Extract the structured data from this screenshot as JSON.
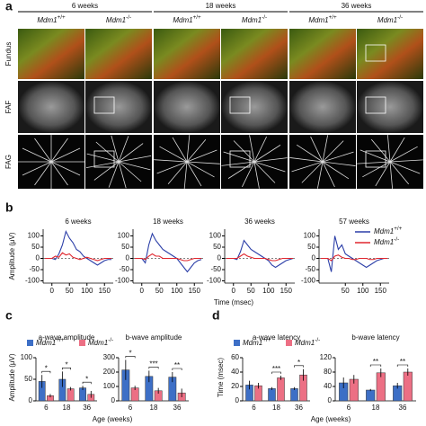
{
  "panel_labels": [
    "a",
    "b",
    "c",
    "d"
  ],
  "gene": "Mdm1",
  "genotypes": [
    "+/+",
    "-/-"
  ],
  "figure_a": {
    "ages": [
      "6 weeks",
      "18 weeks",
      "36 weeks"
    ],
    "rows": [
      "Fundus",
      "FAF",
      "FAG"
    ]
  },
  "panel_b": {
    "ylabel": "Amplitude (μV)",
    "xlabel": "Time (msec)"
  },
  "panel_c": {
    "ylabel": "Amplitude (μV)",
    "xlabel": "Age (weeks)"
  },
  "panel_d": {
    "ylabel": "Time (msec)",
    "xlabel": "Age (weeks)"
  },
  "chart_data": [
    {
      "type": "line",
      "title": "6 weeks",
      "x": [
        -20,
        -10,
        0,
        10,
        20,
        30,
        40,
        50,
        60,
        70,
        80,
        90,
        100,
        110,
        120,
        130,
        140,
        150,
        160,
        170
      ],
      "xlim": [
        -25,
        175
      ],
      "xticks": [
        0,
        50,
        100,
        150
      ],
      "ylim": [
        -110,
        130
      ],
      "yticks": [
        100,
        50,
        0,
        -50,
        -100
      ],
      "series": [
        {
          "color": "#2c3fa8",
          "values": [
            0,
            0,
            0,
            -5,
            20,
            60,
            120,
            90,
            70,
            40,
            30,
            10,
            0,
            -10,
            -20,
            -30,
            -20,
            -10,
            -5,
            -5
          ]
        },
        {
          "color": "#e0262e",
          "values": [
            0,
            0,
            0,
            10,
            5,
            25,
            15,
            20,
            5,
            0,
            -5,
            0,
            5,
            0,
            -5,
            -10,
            -5,
            0,
            0,
            0
          ]
        }
      ]
    },
    {
      "type": "line",
      "title": "18 weeks",
      "x": [
        -20,
        -10,
        0,
        10,
        20,
        30,
        40,
        50,
        60,
        70,
        80,
        90,
        100,
        110,
        120,
        130,
        140,
        150,
        160,
        170
      ],
      "xlim": [
        -25,
        175
      ],
      "xticks": [
        0,
        50,
        100,
        150
      ],
      "ylim": [
        -110,
        130
      ],
      "yticks": [
        100,
        50,
        0,
        -50,
        -100
      ],
      "series": [
        {
          "color": "#2c3fa8",
          "values": [
            0,
            0,
            0,
            -20,
            60,
            110,
            80,
            60,
            40,
            30,
            20,
            10,
            0,
            -20,
            -40,
            -60,
            -40,
            -20,
            -10,
            -5
          ]
        },
        {
          "color": "#e0262e",
          "values": [
            0,
            0,
            0,
            -5,
            10,
            20,
            10,
            10,
            0,
            0,
            0,
            0,
            0,
            -5,
            -10,
            -10,
            -5,
            0,
            0,
            0
          ]
        }
      ]
    },
    {
      "type": "line",
      "title": "36 weeks",
      "x": [
        -20,
        -10,
        0,
        10,
        20,
        30,
        40,
        50,
        60,
        70,
        80,
        90,
        100,
        110,
        120,
        130,
        140,
        150,
        160,
        170
      ],
      "xlim": [
        -25,
        175
      ],
      "xticks": [
        0,
        50,
        100,
        150
      ],
      "ylim": [
        -110,
        130
      ],
      "yticks": [
        100,
        50,
        0,
        -50,
        -100
      ],
      "series": [
        {
          "color": "#2c3fa8",
          "values": [
            0,
            0,
            0,
            -5,
            30,
            80,
            60,
            40,
            30,
            20,
            10,
            0,
            -10,
            -30,
            -40,
            -30,
            -20,
            -10,
            -5,
            0
          ]
        },
        {
          "color": "#e0262e",
          "values": [
            0,
            0,
            0,
            0,
            10,
            20,
            10,
            5,
            0,
            0,
            0,
            0,
            -5,
            -10,
            -10,
            -5,
            0,
            0,
            0,
            0
          ]
        }
      ]
    },
    {
      "type": "line",
      "title": "57 weeks",
      "x": [
        -20,
        -10,
        0,
        10,
        20,
        30,
        40,
        50,
        60,
        70,
        80,
        90,
        100,
        110,
        120,
        130,
        140,
        150,
        160,
        170
      ],
      "xlim": [
        -25,
        175
      ],
      "xticks": [
        50,
        100,
        150
      ],
      "ylim": [
        -110,
        130
      ],
      "yticks": [
        100,
        50,
        0,
        -50,
        -100
      ],
      "series": [
        {
          "color": "#2c3fa8",
          "values": [
            0,
            0,
            0,
            -60,
            100,
            40,
            60,
            20,
            10,
            0,
            -10,
            -20,
            -30,
            -40,
            -30,
            -20,
            -10,
            -5,
            0,
            0
          ]
        },
        {
          "color": "#e0262e",
          "values": [
            0,
            0,
            0,
            -10,
            10,
            15,
            5,
            0,
            0,
            -5,
            -5,
            0,
            0,
            0,
            -5,
            -5,
            0,
            0,
            0,
            0
          ]
        }
      ]
    },
    {
      "type": "bar",
      "title": "a-wave amplitude",
      "categories": [
        "6",
        "18",
        "36"
      ],
      "ylim": [
        0,
        100
      ],
      "yticks": [
        0,
        50,
        100
      ],
      "significance": [
        "*",
        "*",
        "*"
      ],
      "series": [
        {
          "color": "#3d6fc6",
          "values": [
            45,
            50,
            30
          ],
          "errors": [
            15,
            18,
            5
          ]
        },
        {
          "color": "#ec6f84",
          "values": [
            12,
            28,
            15
          ],
          "errors": [
            4,
            4,
            8
          ]
        }
      ]
    },
    {
      "type": "bar",
      "title": "b-wave amplitude",
      "categories": [
        "6",
        "18",
        "36"
      ],
      "ylim": [
        0,
        300
      ],
      "yticks": [
        0,
        100,
        200,
        300
      ],
      "significance": [
        "*",
        "***",
        "**"
      ],
      "series": [
        {
          "color": "#3d6fc6",
          "values": [
            215,
            170,
            165
          ],
          "errors": [
            70,
            40,
            35
          ]
        },
        {
          "color": "#ec6f84",
          "values": [
            90,
            70,
            55
          ],
          "errors": [
            15,
            20,
            30
          ]
        }
      ]
    },
    {
      "type": "bar",
      "title": "a-wave latency",
      "categories": [
        "6",
        "18",
        "36"
      ],
      "ylim": [
        0,
        60
      ],
      "yticks": [
        0,
        20,
        40,
        60
      ],
      "significance": [
        "",
        "***",
        "*"
      ],
      "series": [
        {
          "color": "#3d6fc6",
          "values": [
            22,
            17,
            17
          ],
          "errors": [
            6,
            2,
            2
          ]
        },
        {
          "color": "#ec6f84",
          "values": [
            21,
            32,
            36
          ],
          "errors": [
            4,
            3,
            8
          ]
        }
      ]
    },
    {
      "type": "bar",
      "title": "b-wave latency",
      "categories": [
        "6",
        "18",
        "36"
      ],
      "ylim": [
        0,
        120
      ],
      "yticks": [
        0,
        40,
        80,
        120
      ],
      "significance": [
        "",
        "**",
        "**"
      ],
      "series": [
        {
          "color": "#3d6fc6",
          "values": [
            50,
            30,
            42
          ],
          "errors": [
            15,
            3,
            8
          ]
        },
        {
          "color": "#ec6f84",
          "values": [
            60,
            78,
            80
          ],
          "errors": [
            12,
            12,
            10
          ]
        }
      ]
    }
  ]
}
